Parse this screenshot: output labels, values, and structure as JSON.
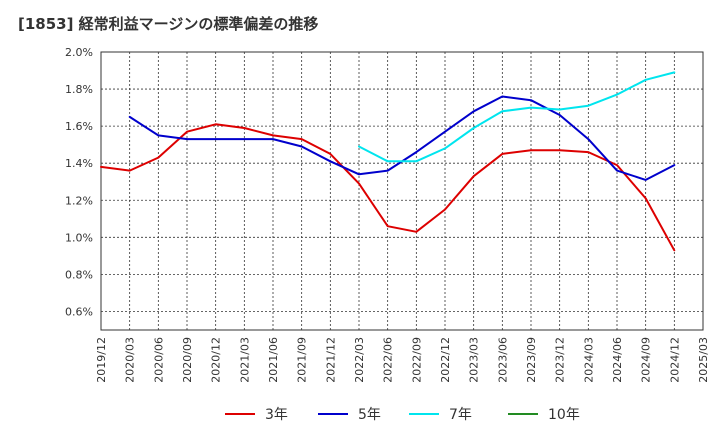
{
  "chart_data": {
    "type": "line",
    "title": "[1853]  経常利益マージンの標準偏差の推移",
    "xlabel": "",
    "ylabel": "",
    "ylim": [
      0.5,
      2.0
    ],
    "yticks": [
      0.6,
      0.8,
      1.0,
      1.2,
      1.4,
      1.6,
      1.8,
      2.0
    ],
    "ytick_labels": [
      "0.6%",
      "0.8%",
      "1.0%",
      "1.2%",
      "1.4%",
      "1.6%",
      "1.8%",
      "2.0%"
    ],
    "x_tick_labels": [
      "2019/12",
      "2020/03",
      "2020/06",
      "2020/09",
      "2020/12",
      "2021/03",
      "2021/06",
      "2021/09",
      "2021/12",
      "2022/03",
      "2022/06",
      "2022/09",
      "2022/12",
      "2023/03",
      "2023/06",
      "2023/09",
      "2023/12",
      "2024/03",
      "2024/06",
      "2024/09",
      "2024/12",
      "2025/03"
    ],
    "grid": true,
    "legend_position": "bottom",
    "series": [
      {
        "name": "3年",
        "color": "#dd0000",
        "x": [
          "2019/12",
          "2020/03",
          "2020/06",
          "2020/09",
          "2020/12",
          "2021/03",
          "2021/06",
          "2021/09",
          "2021/12",
          "2022/03",
          "2022/06",
          "2022/09",
          "2022/12",
          "2023/03",
          "2023/06",
          "2023/09",
          "2023/12",
          "2024/03",
          "2024/06",
          "2024/09",
          "2024/12"
        ],
        "values": [
          1.38,
          1.36,
          1.43,
          1.57,
          1.61,
          1.59,
          1.55,
          1.53,
          1.45,
          1.29,
          1.06,
          1.03,
          1.15,
          1.33,
          1.45,
          1.47,
          1.47,
          1.46,
          1.39,
          1.21,
          0.93
        ]
      },
      {
        "name": "5年",
        "color": "#0000cc",
        "x": [
          "2020/03",
          "2020/06",
          "2020/09",
          "2020/12",
          "2021/03",
          "2021/06",
          "2021/09",
          "2021/12",
          "2022/03",
          "2022/06",
          "2022/09",
          "2022/12",
          "2023/03",
          "2023/06",
          "2023/09",
          "2023/12",
          "2024/03",
          "2024/06",
          "2024/09",
          "2024/12"
        ],
        "values": [
          1.65,
          1.55,
          1.53,
          1.53,
          1.53,
          1.53,
          1.49,
          1.41,
          1.34,
          1.36,
          1.46,
          1.57,
          1.68,
          1.76,
          1.74,
          1.66,
          1.53,
          1.36,
          1.31,
          1.39
        ]
      },
      {
        "name": "7年",
        "color": "#00e5ee",
        "x": [
          "2022/03",
          "2022/06",
          "2022/09",
          "2022/12",
          "2023/03",
          "2023/06",
          "2023/09",
          "2023/12",
          "2024/03",
          "2024/06",
          "2024/09",
          "2024/12"
        ],
        "values": [
          1.49,
          1.41,
          1.41,
          1.48,
          1.59,
          1.68,
          1.7,
          1.69,
          1.71,
          1.77,
          1.85,
          1.89
        ]
      },
      {
        "name": "10年",
        "color": "#228b22",
        "x": [],
        "values": []
      }
    ]
  }
}
